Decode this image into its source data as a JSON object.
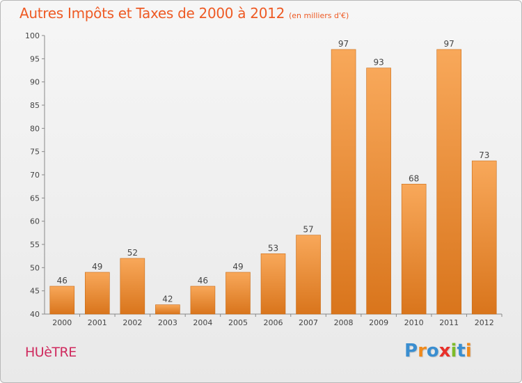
{
  "title": "Autres Impôts et Taxes de 2000 à 2012",
  "subtitle": "(en milliers d'€)",
  "commune": "HUèTRE",
  "logo": {
    "text": "Proxiti",
    "letter_colors": [
      "#3a8ed0",
      "#f08a1c",
      "#3a8ed0",
      "#e8302a",
      "#7dbb2a",
      "#3a8ed0",
      "#f08a1c"
    ]
  },
  "colors": {
    "bar_top": "#f8a85a",
    "bar_bottom": "#d9751c",
    "bar_edge": "#c96a14",
    "title": "#ee5a24",
    "commune": "#cf2a5e",
    "grid": "#d0d0d0"
  },
  "chart_data": {
    "type": "bar",
    "title": "Autres Impôts et Taxes de 2000 à 2012",
    "subtitle": "(en milliers d'€)",
    "categories": [
      "2000",
      "2001",
      "2002",
      "2003",
      "2004",
      "2005",
      "2006",
      "2007",
      "2008",
      "2009",
      "2010",
      "2011",
      "2012"
    ],
    "values": [
      46,
      49,
      52,
      42,
      46,
      49,
      53,
      57,
      97,
      93,
      68,
      97,
      73
    ],
    "data_labels": [
      "46",
      "49",
      "52",
      "42",
      "46",
      "49",
      "53",
      "57",
      "97",
      "93",
      "68",
      "97",
      "73"
    ],
    "y_ticks": [
      "40",
      "45",
      "50",
      "55",
      "60",
      "65",
      "70",
      "75",
      "80",
      "85",
      "90",
      "95",
      "100"
    ],
    "ylim": [
      40,
      100
    ],
    "grid": false,
    "legend": "none"
  }
}
